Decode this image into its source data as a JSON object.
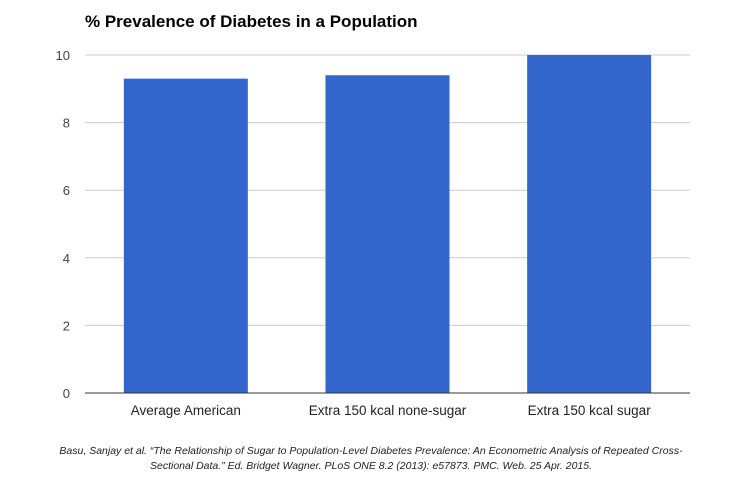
{
  "chart_data": {
    "type": "bar",
    "title": "% Prevalence of Diabetes in a Population",
    "categories": [
      "Average American",
      "Extra 150 kcal none-sugar",
      "Extra 150 kcal sugar"
    ],
    "values": [
      9.3,
      9.4,
      10.0
    ],
    "xlabel": "",
    "ylabel": "",
    "ylim": [
      0,
      10
    ],
    "yticks": [
      0,
      2,
      4,
      6,
      8,
      10
    ],
    "grid": true,
    "legend": "none",
    "bar_color": "#3366cc",
    "grid_color": "#cccccc",
    "axis_color": "#333333"
  },
  "citation": {
    "line1": "Basu, Sanjay et al. “The Relationship of Sugar to Population-Level Diabetes Prevalence: An Econometric Analysis of Repeated Cross-",
    "line2": "Sectional Data.” Ed. Bridget Wagner. PLoS ONE 8.2 (2013): e57873. PMC. Web. 25 Apr. 2015."
  }
}
